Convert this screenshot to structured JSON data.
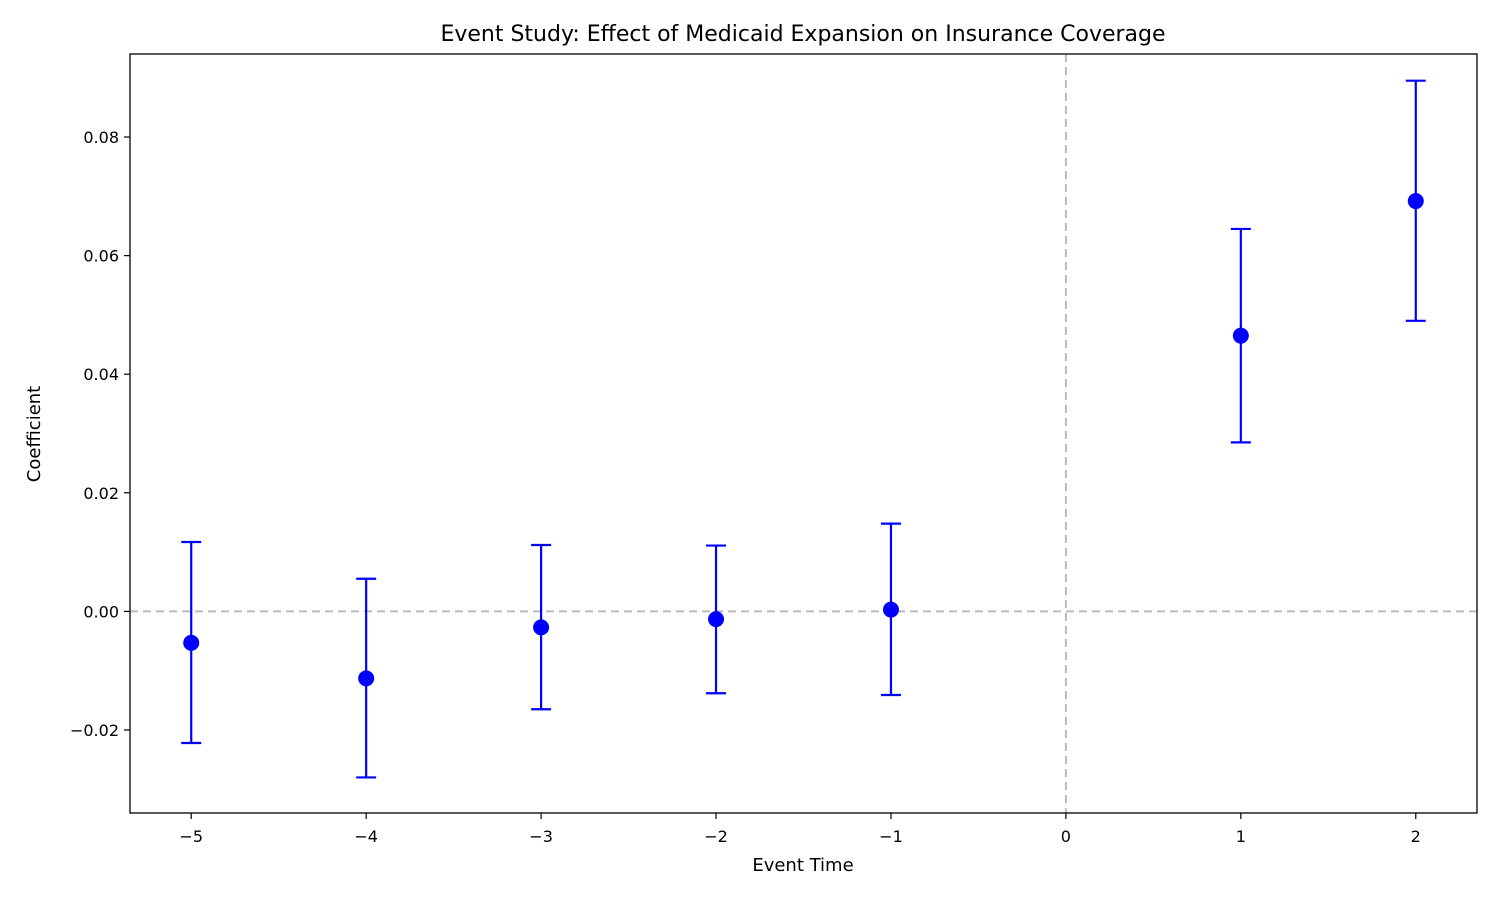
{
  "chart_data": {
    "type": "scatter",
    "title": "Event Study: Effect of Medicaid Expansion on Insurance Coverage",
    "xlabel": "Event Time",
    "ylabel": "Coefficient",
    "xlim": [
      -5.35,
      2.35
    ],
    "ylim": [
      -0.034,
      0.094
    ],
    "xticks": [
      -5,
      -4,
      -3,
      -2,
      -1,
      0,
      1,
      2
    ],
    "xtick_labels": [
      "−5",
      "−4",
      "−3",
      "−2",
      "−1",
      "0",
      "1",
      "2"
    ],
    "yticks": [
      -0.02,
      0.0,
      0.02,
      0.04,
      0.06,
      0.08
    ],
    "ytick_labels": [
      "−0.02",
      "0.00",
      "0.02",
      "0.04",
      "0.06",
      "0.08"
    ],
    "series": [
      {
        "color": "#0000ff",
        "points": [
          {
            "x": -5,
            "y": -0.0053,
            "lower": -0.0222,
            "upper": 0.0117
          },
          {
            "x": -4,
            "y": -0.0113,
            "lower": -0.028,
            "upper": 0.0055
          },
          {
            "x": -3,
            "y": -0.0027,
            "lower": -0.0165,
            "upper": 0.0112
          },
          {
            "x": -2,
            "y": -0.0013,
            "lower": -0.0138,
            "upper": 0.0111
          },
          {
            "x": -1,
            "y": 0.0003,
            "lower": -0.0141,
            "upper": 0.0148
          },
          {
            "x": 1,
            "y": 0.0465,
            "lower": 0.0285,
            "upper": 0.0645
          },
          {
            "x": 2,
            "y": 0.0692,
            "lower": 0.049,
            "upper": 0.0895
          }
        ]
      }
    ],
    "reference_lines": [
      {
        "orientation": "horizontal",
        "value": 0,
        "color": "#bbbbbb",
        "style": "dashed"
      },
      {
        "orientation": "vertical",
        "value": 0,
        "color": "#bbbbbb",
        "style": "dashed"
      }
    ],
    "grid": false,
    "legend": "none"
  }
}
